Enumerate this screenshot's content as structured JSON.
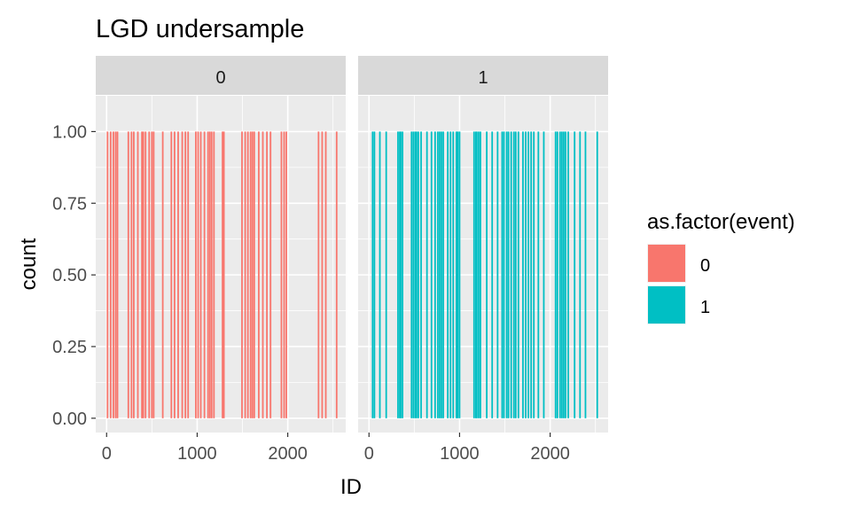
{
  "chart_data": {
    "type": "bar",
    "title": "LGD undersample",
    "xlabel": "ID",
    "ylabel": "count",
    "xlim": [
      -120,
      2640
    ],
    "ylim": [
      -0.05,
      1.125
    ],
    "x_ticks": [
      0,
      1000,
      2000
    ],
    "x_tick_labels": [
      "0",
      "1000",
      "2000"
    ],
    "y_ticks": [
      0,
      0.25,
      0.5,
      0.75,
      1.0
    ],
    "y_tick_labels": [
      "0.00",
      "0.25",
      "0.50",
      "0.75",
      "1.00"
    ],
    "grid": true,
    "facet_variable": "event",
    "facets": [
      {
        "label": "0",
        "fill": "#F8766D",
        "x": [
          10,
          45,
          75,
          100,
          120,
          240,
          275,
          300,
          345,
          390,
          405,
          430,
          470,
          500,
          520,
          620,
          715,
          750,
          790,
          835,
          870,
          900,
          985,
          1010,
          1040,
          1080,
          1120,
          1140,
          1160,
          1185,
          1280,
          1295,
          1495,
          1530,
          1560,
          1590,
          1610,
          1630,
          1680,
          1725,
          1770,
          1810,
          1930,
          1960,
          1985,
          2340,
          2380,
          2420,
          2540
        ],
        "y": [
          1,
          1,
          1,
          1,
          1,
          1,
          1,
          1,
          1,
          1,
          1,
          1,
          1,
          1,
          1,
          1,
          1,
          1,
          1,
          1,
          1,
          1,
          1,
          1,
          1,
          1,
          1,
          1,
          1,
          1,
          1,
          1,
          1,
          1,
          1,
          1,
          1,
          1,
          1,
          1,
          1,
          1,
          1,
          1,
          1,
          1,
          1,
          1,
          1
        ]
      },
      {
        "label": "1",
        "fill": "#00BFC4",
        "x": [
          40,
          60,
          120,
          190,
          320,
          340,
          350,
          370,
          470,
          490,
          510,
          525,
          545,
          575,
          640,
          690,
          730,
          760,
          780,
          800,
          820,
          870,
          900,
          930,
          965,
          980,
          1000,
          1160,
          1180,
          1190,
          1210,
          1230,
          1300,
          1360,
          1420,
          1470,
          1490,
          1520,
          1540,
          1570,
          1600,
          1620,
          1650,
          1700,
          1730,
          1760,
          1790,
          1820,
          1870,
          1930,
          2060,
          2080,
          2110,
          2130,
          2150,
          2170,
          2200,
          2270,
          2330,
          2390,
          2520
        ],
        "y": [
          1,
          1,
          1,
          1,
          1,
          1,
          1,
          1,
          1,
          1,
          1,
          1,
          1,
          1,
          1,
          1,
          1,
          1,
          1,
          1,
          1,
          1,
          1,
          1,
          1,
          1,
          1,
          1,
          1,
          1,
          1,
          1,
          1,
          1,
          1,
          1,
          1,
          1,
          1,
          1,
          1,
          1,
          1,
          1,
          1,
          1,
          1,
          1,
          1,
          1,
          1,
          1,
          1,
          1,
          1,
          1,
          1,
          1,
          1,
          1,
          1
        ]
      }
    ],
    "legend": {
      "title": "as.factor(event)",
      "position": "right",
      "entries": [
        {
          "label": "0",
          "color": "#F8766D"
        },
        {
          "label": "1",
          "color": "#00BFC4"
        }
      ]
    }
  }
}
